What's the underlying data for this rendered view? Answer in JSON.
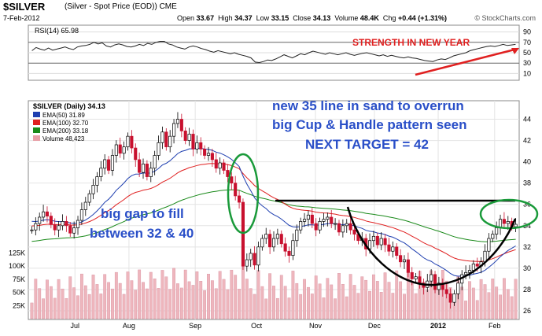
{
  "header": {
    "symbol": "$SILVER",
    "name": "(Silver - Spot Price (EOD)) CME",
    "date": "7-Feb-2012",
    "open_label": "Open",
    "open": "33.67",
    "high_label": "High",
    "high": "34.37",
    "low_label": "Low",
    "low": "33.15",
    "close_label": "Close",
    "close": "34.13",
    "volume_label": "Volume",
    "volume": "48.4K",
    "chg_label": "Chg",
    "chg": "+0.44 (+1.31%)",
    "watermark": "© StockCharts.com"
  },
  "rsi_panel": {
    "legend": "RSI(14) 65.98",
    "annotation": "STRENGTH IN NEW YEAR",
    "ticks": [
      "90",
      "70",
      "50",
      "30",
      "10"
    ]
  },
  "price_panel": {
    "legend_title": "$SILVER (Daily) 34.13",
    "legend_items": [
      {
        "label": "EMA(50) 31.89",
        "color": "#1f3fb0"
      },
      {
        "label": "EMA(100) 32.70",
        "color": "#e02020"
      },
      {
        "label": "EMA(200) 33.18",
        "color": "#1a8a1a"
      },
      {
        "label": "Volume 48,423",
        "color": "#e8a0a8"
      }
    ],
    "annotation_lines": [
      "new 35 line in sand to overrun",
      "big Cup & Handle pattern seen",
      "NEXT TARGET = 42"
    ],
    "gap_lines": [
      "big gap to fill",
      "between 32 & 40"
    ],
    "y_ticks": [
      "44",
      "42",
      "40",
      "38",
      "36",
      "34",
      "32",
      "30",
      "28",
      "26"
    ],
    "volume_ticks": [
      "125K",
      "100K",
      "75K",
      "50K",
      "25K"
    ],
    "x_ticks": [
      "Jul",
      "Aug",
      "Sep",
      "Oct",
      "Nov",
      "Dec",
      "2012",
      "Feb"
    ]
  },
  "chart_data": {
    "type": "candlestick",
    "title": "$SILVER (Silver - Spot Price (EOD)) CME",
    "ylim": [
      26,
      45
    ],
    "months": [
      "Jul",
      "Aug",
      "Sep",
      "Oct",
      "Nov",
      "Dec",
      "2012",
      "Feb"
    ],
    "close_series": [
      33.6,
      34.2,
      34.8,
      35.3,
      34.9,
      34.1,
      33.6,
      34.0,
      34.4,
      34.0,
      33.3,
      33.8,
      34.5,
      35.5,
      36.2,
      37.0,
      37.8,
      38.6,
      39.4,
      40.2,
      39.2,
      40.6,
      41.6,
      40.8,
      41.4,
      42.4,
      41.3,
      40.2,
      39.0,
      39.8,
      38.6,
      39.4,
      40.6,
      41.8,
      42.8,
      41.4,
      42.4,
      43.6,
      44.0,
      42.9,
      42.0,
      42.6,
      41.2,
      41.8,
      41.2,
      40.6,
      40.8,
      40.2,
      39.4,
      39.9,
      39.2,
      38.6,
      38.0,
      36.8,
      36.2,
      30.2,
      30.8,
      31.4,
      30.3,
      32.0,
      32.8,
      33.2,
      32.0,
      32.8,
      33.2,
      32.3,
      31.6,
      31.2,
      32.6,
      33.6,
      34.4,
      34.6,
      35.0,
      34.2,
      33.6,
      34.4,
      34.6,
      34.8,
      34.2,
      34.2,
      33.4,
      34.0,
      34.2,
      33.6,
      33.2,
      32.6,
      32.8,
      31.8,
      32.6,
      33.0,
      32.2,
      32.8,
      32.2,
      31.6,
      32.0,
      31.2,
      30.6,
      30.8,
      29.6,
      29.0,
      29.2,
      28.6,
      28.2,
      28.8,
      29.4,
      28.0,
      28.6,
      28.0,
      27.6,
      26.8,
      27.6,
      28.6,
      29.4,
      29.6,
      29.8,
      30.4,
      30.2,
      30.6,
      31.6,
      32.8,
      33.2,
      33.8,
      34.6,
      34.2,
      34.4,
      33.9,
      34.13
    ],
    "rsi_series": [
      54,
      60,
      57,
      55,
      59,
      55,
      57,
      59,
      61,
      58,
      56,
      61,
      63,
      64,
      66,
      70,
      67,
      69,
      63,
      61,
      65,
      67,
      65,
      62,
      61,
      63,
      66,
      64,
      68,
      66,
      70,
      72,
      72,
      67,
      65,
      61,
      59,
      57,
      61,
      63,
      61,
      58,
      56,
      53,
      51,
      54,
      52,
      50,
      48,
      50,
      47,
      45,
      43,
      40,
      32,
      31,
      33,
      36,
      35,
      38,
      42,
      46,
      43,
      40,
      44,
      48,
      46,
      50,
      53,
      51,
      49,
      47,
      50,
      48,
      46,
      48,
      50,
      47,
      45,
      47,
      49,
      50,
      48,
      46,
      44,
      46,
      43,
      45,
      43,
      41,
      40,
      42,
      40,
      39,
      37,
      35,
      34,
      33,
      36,
      38,
      37,
      40,
      44,
      46,
      48,
      50,
      54,
      56,
      58,
      60,
      62,
      63,
      62,
      64,
      66,
      64,
      65,
      66
    ],
    "annotations": [
      {
        "text": "new 35 line in sand to overrun"
      },
      {
        "text": "big Cup & Handle pattern seen"
      },
      {
        "text": "NEXT TARGET = 42"
      },
      {
        "text": "big gap to fill"
      },
      {
        "text": "between 32 & 40"
      },
      {
        "text": "STRENGTH IN NEW YEAR"
      }
    ],
    "resistance_level": 35,
    "series": [
      {
        "name": "EMA(50)",
        "last": 31.89,
        "color": "#1f3fb0"
      },
      {
        "name": "EMA(100)",
        "last": 32.7,
        "color": "#e02020"
      },
      {
        "name": "EMA(200)",
        "last": 33.18,
        "color": "#1a8a1a"
      }
    ],
    "grid": true,
    "legend": "top-left"
  }
}
